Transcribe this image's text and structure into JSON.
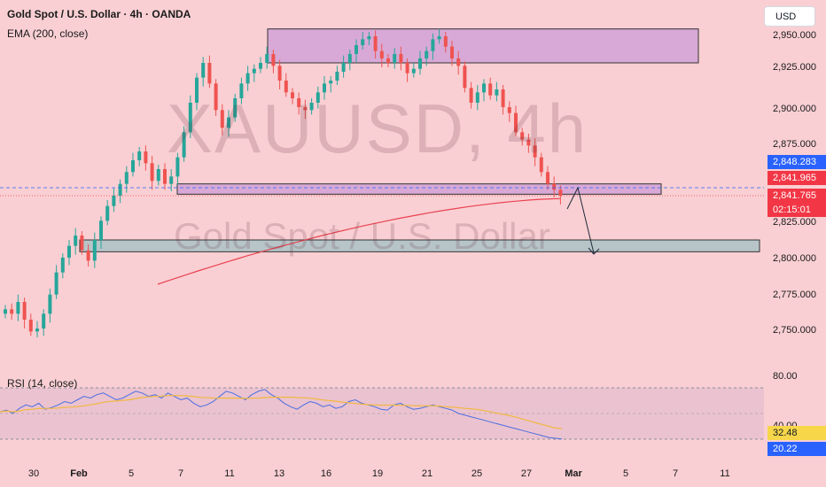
{
  "header": {
    "title": "Gold Spot / U.S. Dollar · 4h · OANDA",
    "ema_label": "EMA (200, close)",
    "rsi_label": "RSI (14, close)",
    "currency": "USD"
  },
  "watermark": {
    "symbol": "XAUUSD, 4h",
    "name": "Gold Spot / U.S. Dollar"
  },
  "price_axis": {
    "labels": [
      "2,950.000",
      "2,925.000",
      "2,900.000",
      "2,875.000",
      "2,825.000",
      "2,800.000",
      "2,775.000",
      "2,750.000"
    ]
  },
  "price_badges": {
    "blue_price": "2,848.283",
    "red_price_high": "2,841.965",
    "red_price": "2,841.765",
    "countdown": "02:15:01"
  },
  "rsi_axis": {
    "label_top": "80.00",
    "label_partial": "40.00",
    "value_yellow": "32.48",
    "value_blue": "20.22"
  },
  "time_axis": {
    "labels": [
      {
        "text": "30",
        "bold": false
      },
      {
        "text": "Feb",
        "bold": true
      },
      {
        "text": "5",
        "bold": false
      },
      {
        "text": "7",
        "bold": false
      },
      {
        "text": "11",
        "bold": false
      },
      {
        "text": "13",
        "bold": false
      },
      {
        "text": "16",
        "bold": false
      },
      {
        "text": "19",
        "bold": false
      },
      {
        "text": "21",
        "bold": false
      },
      {
        "text": "25",
        "bold": false
      },
      {
        "text": "27",
        "bold": false
      },
      {
        "text": "Mar",
        "bold": true
      },
      {
        "text": "5",
        "bold": false
      },
      {
        "text": "7",
        "bold": false
      },
      {
        "text": "11",
        "bold": false
      }
    ]
  },
  "colors": {
    "background": "#f9cfd3",
    "up_candle": "#26a69a",
    "down_candle": "#ef5350",
    "ema": "#e8424f",
    "rsi_line": "#4a6fe3",
    "rsi_ma": "#f0b840",
    "zone_purple": "#d8a9d6",
    "zone_gray": "#b7c5c9",
    "badge_blue": "#2962ff",
    "badge_red": "#f23645"
  },
  "chart_data": {
    "type": "candlestick",
    "symbol": "XAUUSD",
    "timeframe": "4h",
    "ylim": [
      2730,
      2960
    ],
    "x_labels": [
      "30",
      "Feb",
      "5",
      "7",
      "11",
      "13",
      "16",
      "19",
      "21",
      "25",
      "27",
      "Mar",
      "5",
      "7",
      "11"
    ],
    "close_path": [
      2765,
      2762,
      2770,
      2758,
      2750,
      2752,
      2762,
      2775,
      2790,
      2800,
      2808,
      2815,
      2805,
      2798,
      2812,
      2825,
      2835,
      2842,
      2850,
      2858,
      2866,
      2872,
      2864,
      2852,
      2860,
      2850,
      2855,
      2868,
      2885,
      2905,
      2922,
      2932,
      2918,
      2900,
      2888,
      2895,
      2908,
      2918,
      2925,
      2928,
      2932,
      2938,
      2930,
      2920,
      2912,
      2908,
      2902,
      2900,
      2905,
      2912,
      2918,
      2920,
      2926,
      2932,
      2938,
      2944,
      2948,
      2950,
      2940,
      2935,
      2932,
      2938,
      2932,
      2925,
      2928,
      2935,
      2940,
      2948,
      2950,
      2943,
      2935,
      2930,
      2915,
      2905,
      2912,
      2918,
      2910,
      2914,
      2902,
      2898,
      2885,
      2880,
      2876,
      2868,
      2858,
      2850,
      2846,
      2842
    ],
    "ema_200_range": [
      2782,
      2840
    ],
    "rsi": {
      "top_band": 80,
      "bottom_band": 20,
      "last_rsi": 20.22,
      "last_ma": 32.48
    },
    "zones": [
      {
        "name": "supply-zone",
        "price_top": 2955,
        "price_bottom": 2932
      },
      {
        "name": "demand-zone-upper",
        "price_top": 2850,
        "price_bottom": 2843
      },
      {
        "name": "demand-zone-lower",
        "price_top": 2812,
        "price_bottom": 2804
      }
    ]
  }
}
